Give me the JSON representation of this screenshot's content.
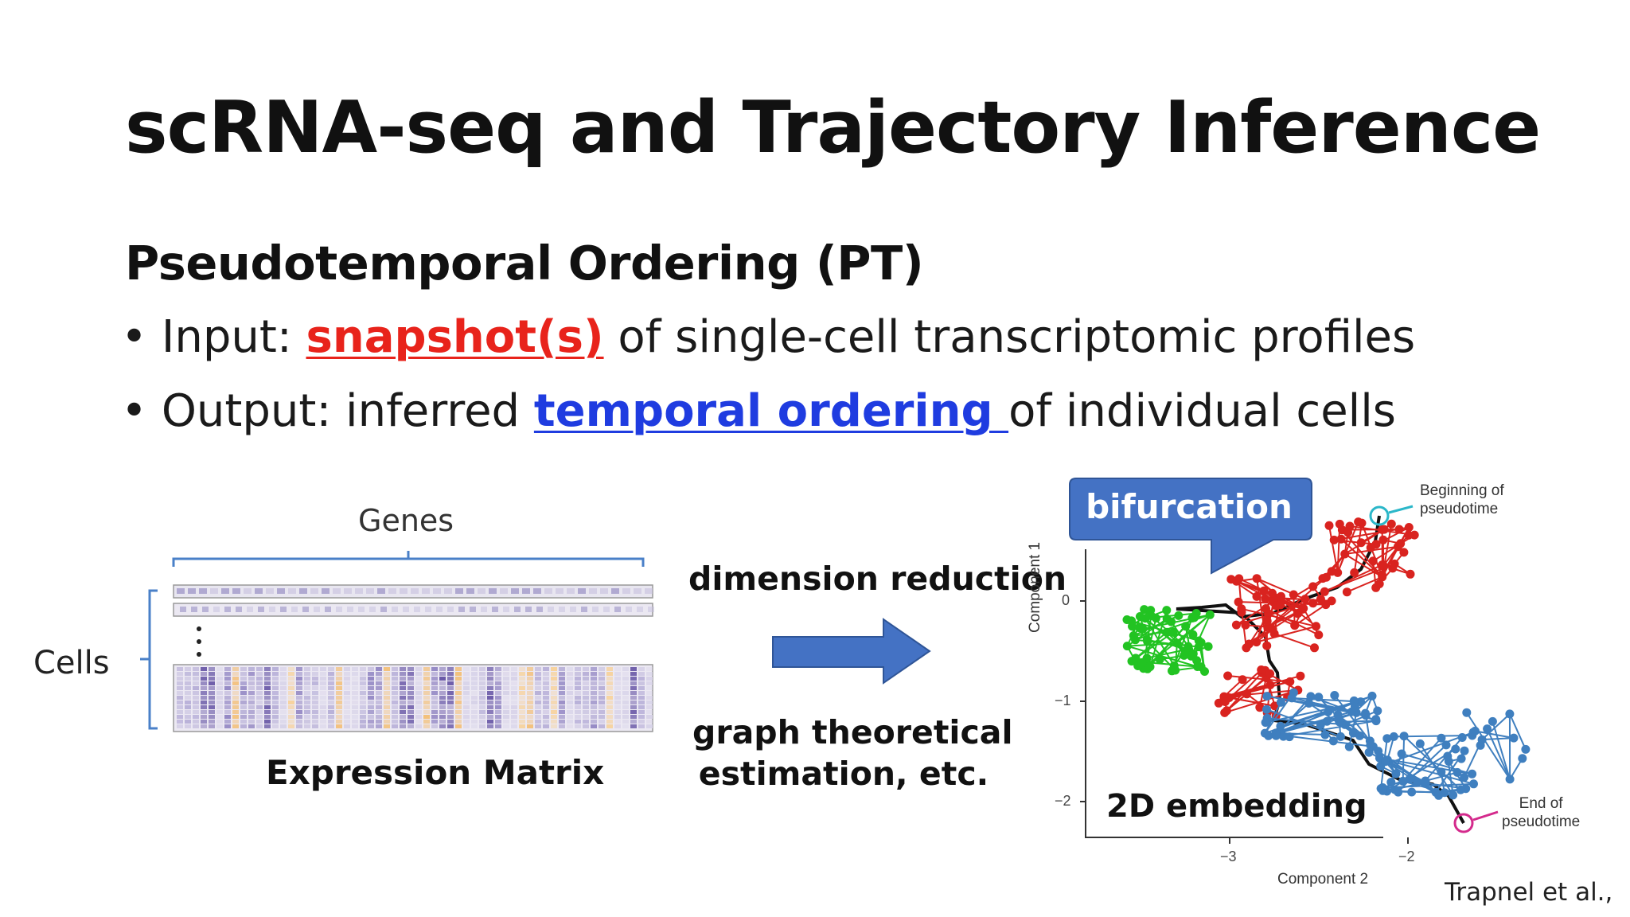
{
  "slide": {
    "title": "scRNA-seq and Trajectory Inference",
    "subtitle": "Pseudotemporal Ordering (PT)",
    "bullet1": {
      "pre": "Input: ",
      "highlight": "snapshot(s)",
      "post": " of single-cell transcriptomic profiles"
    },
    "bullet2": {
      "pre": "Output: inferred ",
      "highlight": "temporal ordering ",
      "post": "of individual cells"
    }
  },
  "matrix_figure": {
    "genes_label": "Genes",
    "cells_label": "Cells",
    "caption": "Expression Matrix"
  },
  "process": {
    "method1": "dimension reduction",
    "method2_line1": "graph theoretical",
    "method2_line2": "estimation, etc."
  },
  "embedding_figure": {
    "callout": "bifurcation",
    "caption": "2D embedding",
    "beginning_label_1": "Beginning of",
    "beginning_label_2": "pseudotime",
    "end_label_1": "End of",
    "end_label_2": "pseudotime",
    "x_axis_title": "Component 2",
    "y_axis_title": "Component 1",
    "x_ticks": [
      "−3",
      "−2"
    ],
    "y_ticks": [
      "0",
      "−1",
      "−2"
    ]
  },
  "citation": "Trapnel et al.,",
  "colors": {
    "red_highlight": "#e8231b",
    "blue_highlight": "#1f3ce0",
    "callout_fill": "#4472c4",
    "arrow_fill": "#4472c4",
    "branch_green": "#22c322",
    "branch_red": "#d9231f",
    "branch_blue": "#3f7fbf"
  }
}
